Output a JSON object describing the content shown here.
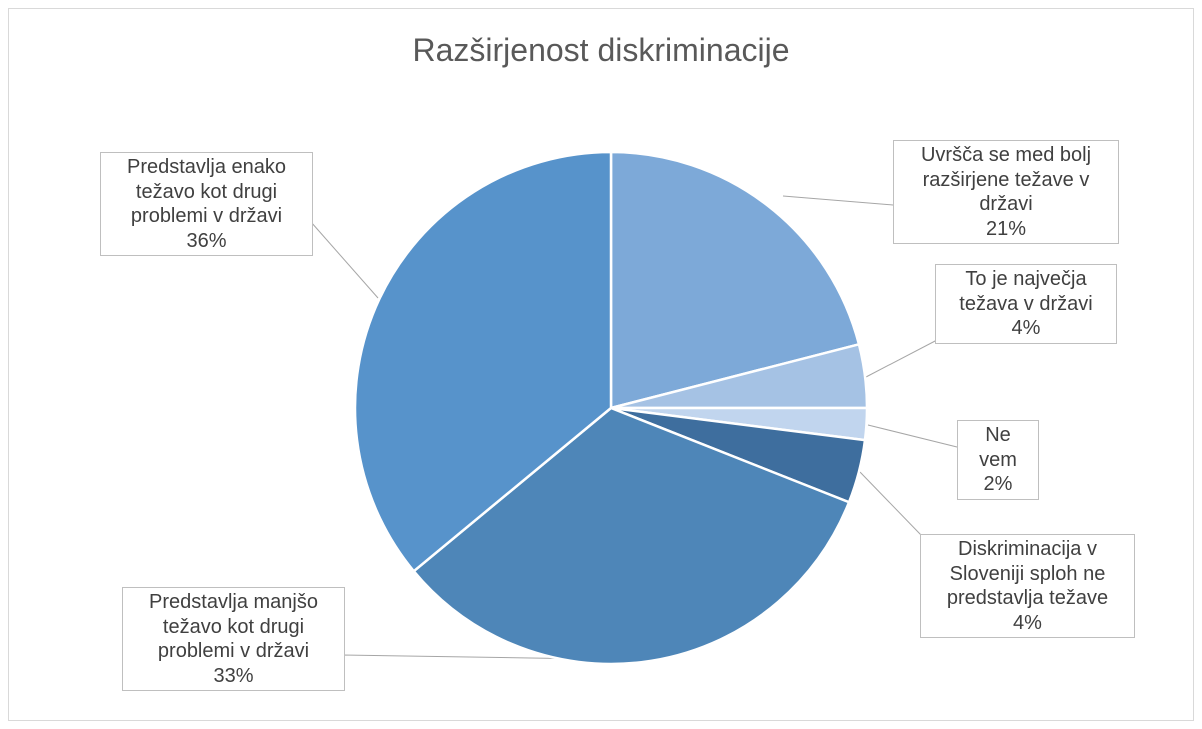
{
  "chart_data": {
    "type": "pie",
    "title": "Razširjenost diskriminacije",
    "categories": [
      "Uvršča se med bolj razširjene težave v državi",
      "To je največja težava v državi",
      "Ne vem",
      "Diskriminacija v Sloveniji sploh ne predstavlja težave",
      "Predstavlja manjšo težavo kot drugi problemi v državi",
      "Predstavlja enako težavo kot drugi problemi v državi"
    ],
    "values": [
      21,
      4,
      2,
      4,
      33,
      36
    ],
    "value_labels": [
      "21%",
      "4%",
      "2%",
      "4%",
      "33%",
      "36%"
    ],
    "colors": [
      "#7da9d8",
      "#a5c2e4",
      "#c1d5ee",
      "#3e6e9e",
      "#4e86b8",
      "#5793cb"
    ]
  }
}
